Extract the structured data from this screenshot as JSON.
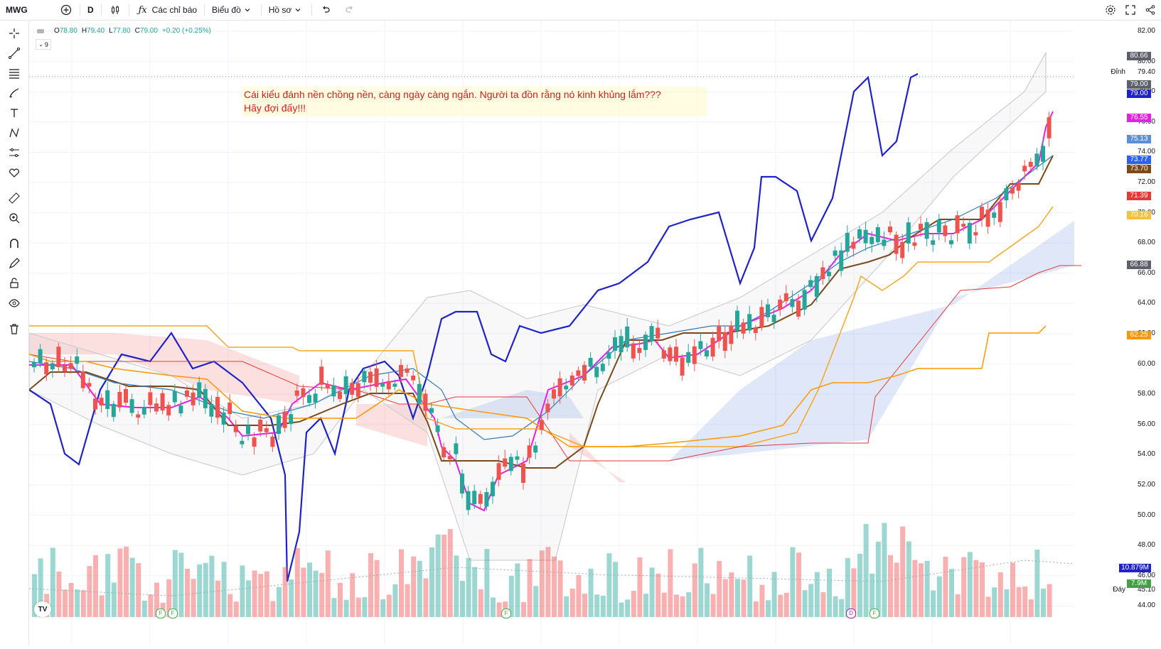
{
  "toolbar": {
    "symbol": "MWG",
    "interval": "D",
    "indicators_label": "Các chỉ báo",
    "chart_label": "Biểu đồ",
    "profile_label": "Hồ sơ"
  },
  "legend": {
    "open_label": "O",
    "open": "78.80",
    "high_label": "H",
    "high": "79.40",
    "low_label": "L",
    "low": "77.80",
    "close_label": "C",
    "close": "79.00",
    "change": "+0.20 (+0.25%)",
    "collapsed_count": "9"
  },
  "annotation": {
    "line1": "Cái kiểu đánh nền chồng nền, càng ngày càng ngắn. Người ta đồn rằng nó kinh khủng lắm???",
    "line2": "Hãy đợi đấy!!!"
  },
  "price_axis": {
    "ticks": [
      "82.00",
      "80.00",
      "78.00",
      "76.00",
      "74.00",
      "72.00",
      "70.00",
      "68.00",
      "66.00",
      "64.00",
      "62.00",
      "60.00",
      "58.00",
      "56.00",
      "54.00",
      "52.00",
      "50.00",
      "48.00",
      "46.00",
      "44.00"
    ],
    "peak_label": "Đỉnh",
    "trough_label": "Đáy",
    "peak_value": "79.40",
    "trough_value": "45.10"
  },
  "badges": [
    {
      "value": "80.66",
      "color": "#5d606b"
    },
    {
      "value": "79.00",
      "color": "#5d606b"
    },
    {
      "value": "79.00",
      "color": "#1e22c8"
    },
    {
      "value": "76.55",
      "color": "#e91ee6"
    },
    {
      "value": "75.13",
      "color": "#5b8fd9"
    },
    {
      "value": "73.77",
      "color": "#2962ff"
    },
    {
      "value": "73.70",
      "color": "#7a4a1b"
    },
    {
      "value": "71.39",
      "color": "#e53935"
    },
    {
      "value": "70.16",
      "color": "#f5c33b"
    },
    {
      "value": "66.88",
      "color": "#5d606b"
    },
    {
      "value": "62.25",
      "color": "#ff9800"
    },
    {
      "value": "10.879M",
      "color": "#1e22c8"
    },
    {
      "value": "7.9M",
      "color": "#43a047"
    }
  ],
  "events": [
    "F",
    "F",
    "F",
    "D",
    "F"
  ],
  "chart_data": {
    "type": "candlestick",
    "symbol": "MWG",
    "interval": "D",
    "ylim": [
      44,
      82
    ],
    "last": {
      "open": 78.8,
      "high": 79.4,
      "low": 77.8,
      "close": 79.0,
      "change": 0.2,
      "change_pct": 0.25
    },
    "levels": {
      "peak": 79.4,
      "trough": 45.1
    },
    "grid": true,
    "colors": {
      "up": "#26a69a",
      "down": "#ef5350"
    }
  }
}
